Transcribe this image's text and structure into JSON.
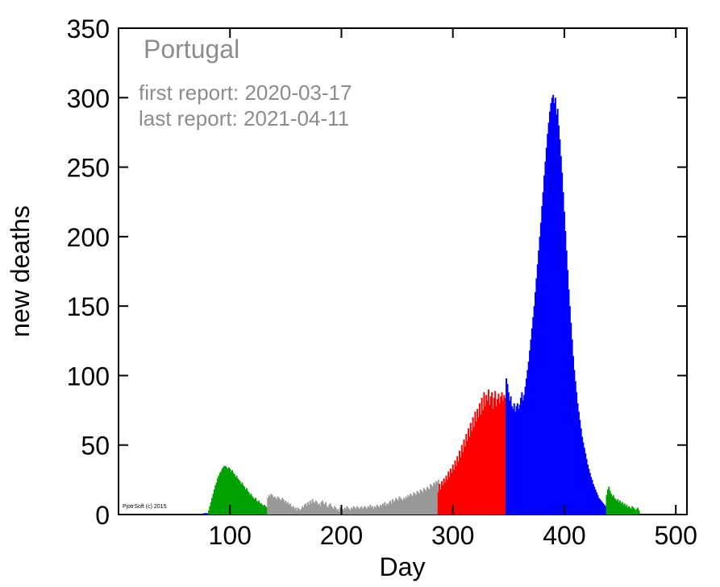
{
  "chart_data": {
    "type": "bar",
    "title": "Portugal",
    "annotations": {
      "first_report": "first report: 2020-03-17",
      "last_report": "last report: 2021-04-11",
      "credit": "PjotrSoft (c) 2015"
    },
    "xlabel": "Day",
    "ylabel": "new deaths",
    "xlim": [
      0,
      510
    ],
    "ylim": [
      0,
      350
    ],
    "x_ticks": [
      100,
      200,
      300,
      400,
      500
    ],
    "y_ticks": [
      0,
      50,
      100,
      150,
      200,
      250,
      300,
      350
    ],
    "grid": false,
    "series": [
      {
        "color": "#0000ff",
        "segment": "early",
        "x_start": 76,
        "values": [
          0,
          1,
          1,
          1,
          1
        ]
      },
      {
        "color": "#00a000",
        "segment": "first wave",
        "x_start": 81,
        "values": [
          3,
          6,
          9,
          12,
          15,
          18,
          21,
          23,
          26,
          28,
          30,
          31,
          33,
          34,
          35,
          35,
          34,
          33,
          34,
          33,
          31,
          32,
          30,
          29,
          27,
          28,
          26,
          25,
          24,
          22,
          23,
          21,
          20,
          18,
          19,
          17,
          16,
          14,
          15,
          13,
          12,
          11,
          12,
          10,
          9,
          10,
          8,
          8,
          7,
          6,
          7,
          6,
          5
        ]
      },
      {
        "color": "#999999",
        "segment": "summer",
        "x_start": 134,
        "values": [
          12,
          14,
          13,
          15,
          14,
          12,
          13,
          12,
          11,
          13,
          12,
          11,
          10,
          12,
          11,
          9,
          10,
          8,
          9,
          7,
          8,
          6,
          5,
          6,
          4,
          5,
          3,
          5,
          4,
          3,
          4,
          6,
          5,
          7,
          8,
          6,
          9,
          7,
          10,
          8,
          11,
          9,
          8,
          10,
          9,
          7,
          8,
          6,
          9,
          10,
          8,
          7,
          9,
          6,
          5,
          7,
          8,
          6,
          5,
          4,
          6,
          5,
          3,
          4,
          2,
          5,
          6,
          4,
          3,
          5,
          4,
          6,
          5,
          4,
          3,
          5,
          4,
          6,
          5,
          4,
          6,
          5,
          4,
          5,
          6,
          4,
          5,
          6,
          5,
          4,
          6,
          5,
          7,
          5,
          6,
          4,
          6,
          5,
          7,
          6,
          5,
          7,
          6,
          8,
          7,
          9,
          6,
          8,
          7,
          9,
          10,
          8,
          11,
          9,
          10,
          12,
          11,
          10,
          13,
          12,
          11,
          10,
          12,
          11,
          13,
          12,
          14,
          13,
          15,
          14,
          13,
          16,
          15,
          14,
          17,
          16,
          15,
          18,
          17,
          16,
          19,
          18,
          17,
          20,
          19,
          18,
          22,
          21,
          20,
          23,
          22,
          24,
          23,
          25
        ]
      },
      {
        "color": "#ff0000",
        "segment": "second wave",
        "x_start": 287,
        "values": [
          16,
          22,
          18,
          24,
          21,
          26,
          23,
          28,
          25,
          31,
          27,
          33,
          30,
          36,
          32,
          39,
          35,
          42,
          38,
          46,
          41,
          50,
          45,
          54,
          49,
          58,
          53,
          62,
          56,
          66,
          60,
          70,
          63,
          74,
          67,
          76,
          70,
          80,
          72,
          84,
          75,
          88,
          78,
          86,
          82,
          90,
          79,
          85,
          88,
          76,
          84,
          89,
          78,
          83,
          87,
          80,
          85,
          88,
          82,
          86,
          84
        ]
      },
      {
        "color": "#0000ff",
        "segment": "third wave",
        "x_start": 348,
        "values": [
          98,
          94,
          88,
          82,
          85,
          78,
          76,
          80,
          74,
          78,
          80,
          76,
          79,
          84,
          88,
          82,
          86,
          92,
          98,
          104,
          110,
          118,
          126,
          134,
          142,
          150,
          160,
          170,
          180,
          190,
          200,
          210,
          222,
          232,
          244,
          254,
          264,
          274,
          282,
          290,
          296,
          300,
          302,
          296,
          300,
          288,
          292,
          280,
          270,
          258,
          246,
          232,
          218,
          204,
          190,
          176,
          162,
          150,
          138,
          126,
          114,
          104,
          96,
          88,
          80,
          74,
          68,
          62,
          56,
          52,
          48,
          44,
          40,
          36,
          33,
          30,
          27,
          25,
          22,
          20,
          18,
          16,
          14,
          12,
          11,
          10,
          9,
          8,
          7,
          6
        ]
      },
      {
        "color": "#00a000",
        "segment": "decline",
        "x_start": 438,
        "values": [
          14,
          18,
          20,
          17,
          15,
          13,
          14,
          12,
          11,
          10,
          11,
          9,
          10,
          8,
          9,
          7,
          8,
          6,
          7,
          5,
          6,
          5,
          4,
          6,
          5,
          4,
          3,
          4,
          5,
          3
        ]
      }
    ]
  }
}
